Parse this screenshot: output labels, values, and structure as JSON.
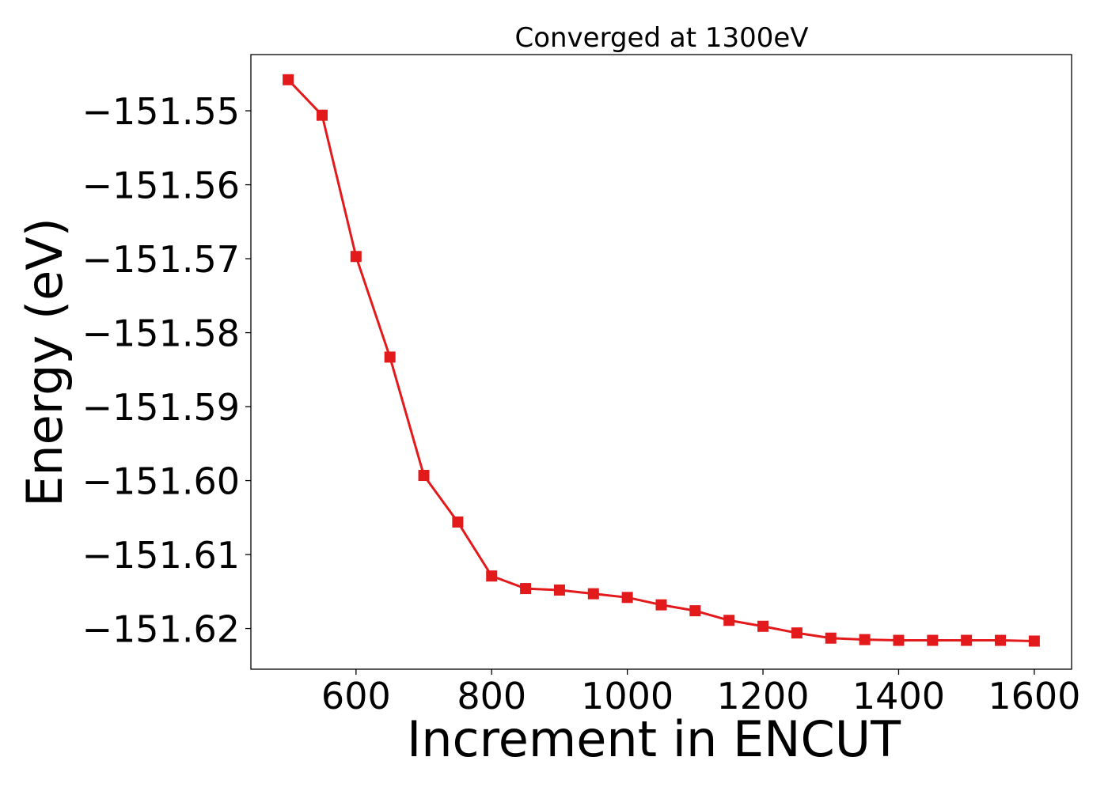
{
  "chart_data": {
    "type": "line",
    "title": "Converged at 1300eV",
    "xlabel": "Increment in ENCUT",
    "ylabel": "Energy (eV)",
    "xlim": [
      445,
      1655
    ],
    "ylim": [
      -151.6255,
      -151.5424
    ],
    "xticks": [
      600,
      800,
      1000,
      1200,
      1400,
      1600
    ],
    "xtick_labels": [
      "600",
      "800",
      "1000",
      "1200",
      "1400",
      "1600"
    ],
    "yticks": [
      -151.55,
      -151.56,
      -151.57,
      -151.58,
      -151.59,
      -151.6,
      -151.61,
      -151.62
    ],
    "ytick_labels": [
      "−151.55",
      "−151.56",
      "−151.57",
      "−151.58",
      "−151.59",
      "−151.60",
      "−151.61",
      "−151.62"
    ],
    "grid": false,
    "series": [
      {
        "color": "#e31a1c",
        "marker": "square",
        "x": [
          500,
          550,
          600,
          650,
          700,
          750,
          800,
          850,
          900,
          950,
          1000,
          1050,
          1100,
          1150,
          1200,
          1250,
          1300,
          1350,
          1400,
          1450,
          1500,
          1550,
          1600
        ],
        "y": [
          -151.5458,
          -151.5506,
          -151.5697,
          -151.5833,
          -151.5993,
          -151.6056,
          -151.6129,
          -151.6146,
          -151.6148,
          -151.6153,
          -151.6158,
          -151.6168,
          -151.6176,
          -151.6189,
          -151.6197,
          -151.6206,
          -151.6213,
          -151.6215,
          -151.6216,
          -151.6216,
          -151.6216,
          -151.6216,
          -151.6217
        ]
      }
    ]
  }
}
